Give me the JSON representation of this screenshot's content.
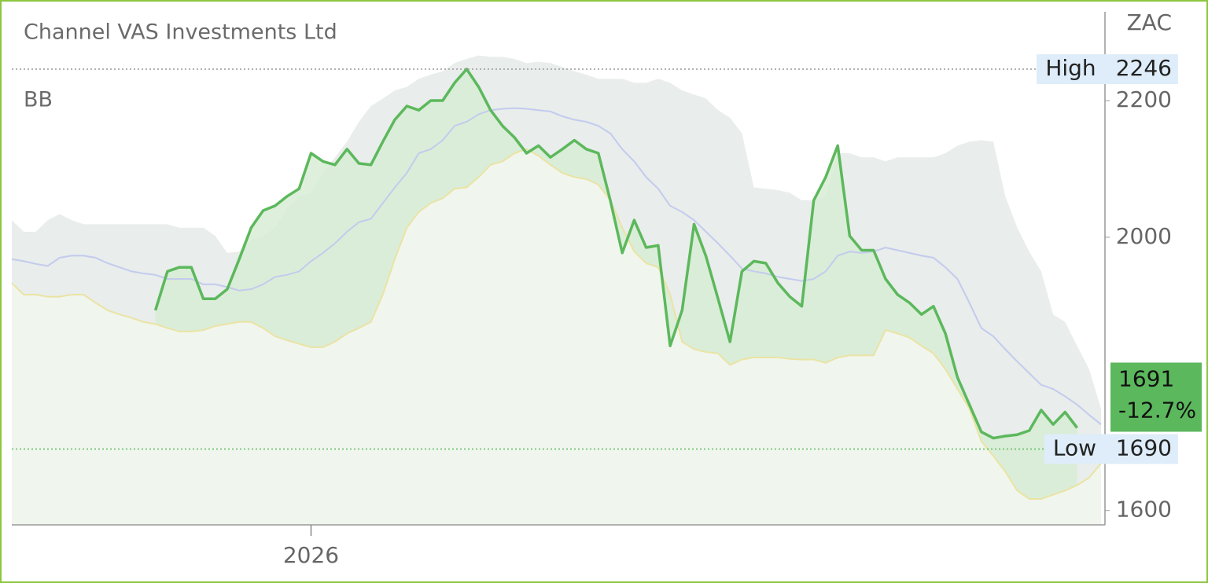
{
  "chart_data": {
    "type": "line",
    "title": "Channel VAS Investments Ltd",
    "indicator": "BB",
    "unit": "ZAC",
    "categories": [
      null,
      null,
      null,
      null,
      null,
      null,
      null,
      null,
      null,
      null,
      null,
      null,
      null,
      null,
      null,
      null,
      null,
      null,
      null,
      null,
      null,
      null,
      null,
      null,
      null,
      "2026",
      null,
      null,
      null,
      null,
      null,
      null,
      null,
      null,
      null,
      null,
      null,
      null,
      null,
      null,
      null,
      null,
      null,
      null,
      null,
      null,
      null,
      null,
      null,
      null,
      null,
      null,
      null,
      null,
      null,
      null,
      null,
      null,
      null,
      null,
      null,
      null,
      null,
      null,
      null,
      null,
      null,
      null,
      null,
      null,
      null,
      null,
      null,
      null,
      null,
      null,
      null,
      null,
      null,
      null,
      null,
      null,
      null,
      null,
      null,
      null,
      null,
      null,
      null,
      null,
      null,
      null
    ],
    "series": [
      {
        "color": "#5cb85c",
        "fill": "#d6ecd3",
        "values": [
          null,
          null,
          null,
          null,
          null,
          null,
          null,
          null,
          null,
          null,
          null,
          null,
          1893,
          1950,
          1956,
          1956,
          1910,
          1910,
          1924,
          1968,
          2014,
          2039,
          2046,
          2060,
          2071,
          2123,
          2111,
          2106,
          2129,
          2108,
          2106,
          2140,
          2172,
          2192,
          2186,
          2200,
          2200,
          2226,
          2246,
          2220,
          2186,
          2163,
          2146,
          2123,
          2134,
          2117,
          2129,
          2142,
          2129,
          2123,
          2054,
          1977,
          2025,
          1985,
          1988,
          1841,
          1893,
          2019,
          1972,
          1910,
          1847,
          1950,
          1965,
          1962,
          1933,
          1913,
          1899,
          2054,
          2088,
          2134,
          2002,
          1981,
          1981,
          1939,
          1916,
          1904,
          1887,
          1899,
          1859,
          1795,
          1755,
          1715,
          1706,
          1709,
          1711,
          1717,
          1747,
          1726,
          1744,
          1721,
          null,
          null
        ]
      },
      {
        "color": "#e9edeb",
        "fill": "#e9edeb",
        "values": [
          2025,
          2008,
          2008,
          2025,
          2034,
          2025,
          2019,
          2019,
          2019,
          2019,
          2019,
          2019,
          2019,
          2019,
          2014,
          2014,
          2014,
          2002,
          1977,
          1979,
          1996,
          2002,
          2014,
          2042,
          2060,
          2065,
          2094,
          2117,
          2140,
          2169,
          2192,
          2203,
          2215,
          2220,
          2232,
          2238,
          2243,
          2255,
          2261,
          2266,
          2264,
          2264,
          2261,
          2255,
          2257,
          2255,
          2249,
          2243,
          2238,
          2232,
          2232,
          2232,
          2226,
          2226,
          2232,
          2226,
          2215,
          2209,
          2203,
          2186,
          2175,
          2152,
          2073,
          2071,
          2069,
          2065,
          2054,
          2054,
          2060,
          2123,
          2123,
          2117,
          2117,
          2111,
          2117,
          2117,
          2117,
          2117,
          2123,
          2134,
          2140,
          2142,
          2140,
          2060,
          2014,
          1979,
          1950,
          1887,
          1876,
          1841,
          1807,
          1749
        ]
      },
      {
        "color": "#c3cbee",
        "values": [
          1968,
          1965,
          1961,
          1958,
          1970,
          1973,
          1973,
          1970,
          1962,
          1956,
          1950,
          1947,
          1945,
          1939,
          1939,
          1939,
          1931,
          1931,
          1927,
          1922,
          1924,
          1931,
          1942,
          1945,
          1950,
          1965,
          1977,
          1991,
          2008,
          2022,
          2027,
          2050,
          2073,
          2094,
          2123,
          2129,
          2142,
          2163,
          2169,
          2180,
          2186,
          2188,
          2189,
          2188,
          2186,
          2184,
          2177,
          2172,
          2169,
          2163,
          2152,
          2129,
          2111,
          2088,
          2071,
          2046,
          2037,
          2025,
          2008,
          1991,
          1973,
          1954,
          1950,
          1947,
          1942,
          1939,
          1936,
          1939,
          1950,
          1973,
          1979,
          1977,
          1979,
          1985,
          1981,
          1977,
          1973,
          1970,
          1956,
          1939,
          1904,
          1867,
          1855,
          1836,
          1818,
          1801,
          1784,
          1778,
          1767,
          1755,
          1740,
          1726
        ]
      },
      {
        "color": "#ebe3a4",
        "fill": "#f0f6ee",
        "values": [
          1933,
          1916,
          1916,
          1913,
          1913,
          1916,
          1916,
          1904,
          1893,
          1887,
          1882,
          1876,
          1873,
          1867,
          1862,
          1862,
          1864,
          1870,
          1873,
          1876,
          1876,
          1867,
          1855,
          1849,
          1844,
          1839,
          1839,
          1847,
          1859,
          1867,
          1876,
          1916,
          1968,
          2014,
          2037,
          2050,
          2057,
          2071,
          2073,
          2088,
          2106,
          2111,
          2123,
          2129,
          2119,
          2106,
          2094,
          2088,
          2085,
          2077,
          2054,
          2014,
          1979,
          1962,
          1956,
          1916,
          1847,
          1836,
          1832,
          1830,
          1813,
          1821,
          1824,
          1824,
          1824,
          1822,
          1821,
          1821,
          1816,
          1824,
          1827,
          1827,
          1827,
          1864,
          1859,
          1853,
          1841,
          1830,
          1807,
          1778,
          1749,
          1701,
          1680,
          1657,
          1629,
          1617,
          1617,
          1623,
          1629,
          1637,
          1648,
          1669
        ]
      }
    ],
    "ylim": [
      1579,
      2330
    ],
    "yticks": [
      1600,
      2000,
      2200
    ],
    "high": {
      "label": "High",
      "value": 2246
    },
    "low": {
      "label": "Low",
      "value": 1690
    },
    "last": {
      "value": 1691,
      "change": "-12.7%"
    }
  }
}
